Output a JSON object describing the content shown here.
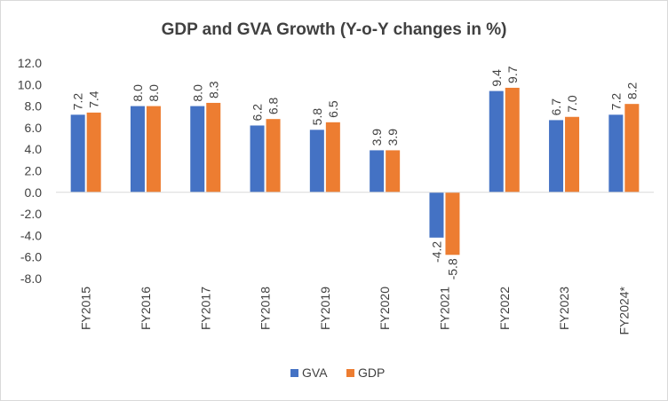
{
  "chart_data": {
    "type": "bar",
    "title": "GDP and GVA Growth (Y-o-Y changes in %)",
    "xlabel": "",
    "ylabel": "",
    "categories": [
      "FY2015",
      "FY2016",
      "FY2017",
      "FY2018",
      "FY2019",
      "FY2020",
      "FY2021",
      "FY2022",
      "FY2023",
      "FY2024*"
    ],
    "series": [
      {
        "name": "GVA",
        "color": "#4472C4",
        "values": [
          7.2,
          8.0,
          8.0,
          6.2,
          5.8,
          3.9,
          -4.2,
          9.4,
          6.7,
          7.2
        ]
      },
      {
        "name": "GDP",
        "color": "#ED7D31",
        "values": [
          7.4,
          8.0,
          8.3,
          6.8,
          6.5,
          3.9,
          -5.8,
          9.7,
          7.0,
          8.2
        ]
      }
    ],
    "ylim": [
      -8.0,
      12.0
    ],
    "yticks": [
      12.0,
      10.0,
      8.0,
      6.0,
      4.0,
      2.0,
      0.0,
      -2.0,
      -4.0,
      -6.0,
      -8.0
    ],
    "grid": false,
    "legend_position": "bottom",
    "data_labels": true,
    "data_label_rotation": "vertical"
  }
}
